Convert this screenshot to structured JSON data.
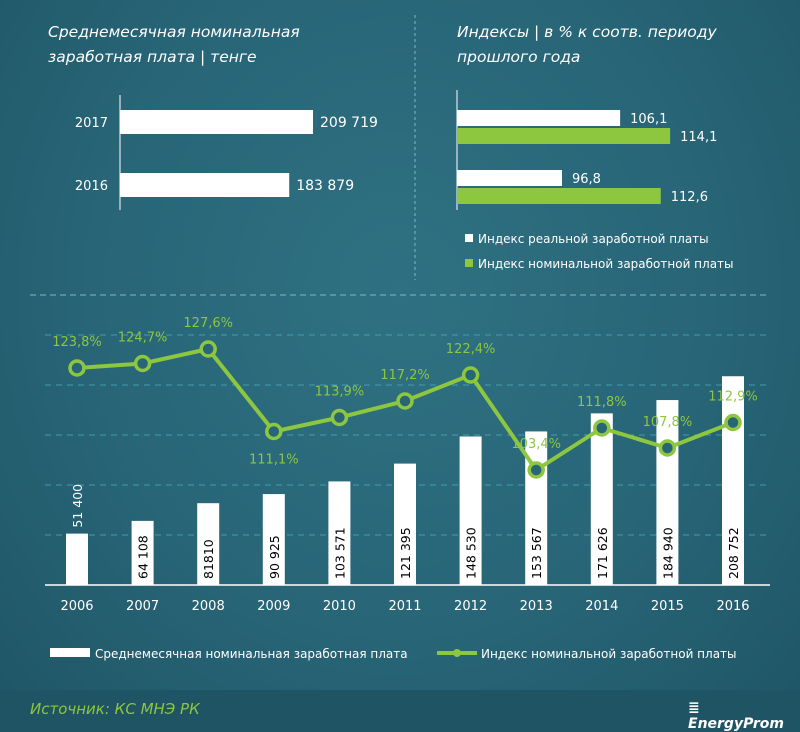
{
  "colors": {
    "bar": "#ffffff",
    "green": "#8dc63f",
    "grid": "#4fb3c8"
  },
  "top_left": {
    "title_line1": "Среднемесячная  номинальная",
    "title_line2": "заработная плата | тенге",
    "categories": [
      "2017",
      "2016"
    ],
    "values": [
      209719,
      183879
    ],
    "labels": [
      "209 719",
      "183 879"
    ]
  },
  "top_right": {
    "title_line1": "Индексы  | в % к соотв. периоду",
    "title_line2": "прошлого года",
    "xmin": 80,
    "groups": [
      {
        "real": 106.1,
        "nominal": 114.1,
        "real_label": "106,1",
        "nominal_label": "114,1"
      },
      {
        "real": 96.8,
        "nominal": 112.6,
        "real_label": "96,8",
        "nominal_label": "112,6"
      }
    ],
    "legend": [
      "Индекс реальной заработной платы",
      "Индекс номинальной заработной платы"
    ]
  },
  "chart_data": {
    "type": "bar+line",
    "categories": [
      "2006",
      "2007",
      "2008",
      "2009",
      "2010",
      "2011",
      "2012",
      "2013",
      "2014",
      "2015",
      "2016"
    ],
    "series": [
      {
        "name": "Среднемесячная номинальная заработная плата",
        "type": "bar",
        "values": [
          51400,
          64108,
          81810,
          90925,
          103571,
          121395,
          148530,
          153567,
          171626,
          184940,
          208752
        ],
        "labels": [
          "51 400",
          "64 108",
          "81810",
          "90 925",
          "103 571",
          "121 395",
          "148 530",
          "153 567",
          "171 626",
          "184 940",
          "208 752"
        ]
      },
      {
        "name": "Индекс номинальной заработной платы",
        "type": "line",
        "values": [
          123.8,
          124.7,
          127.6,
          111.1,
          113.9,
          117.2,
          122.4,
          103.4,
          111.8,
          107.8,
          112.9
        ],
        "labels": [
          "123,8%",
          "124,7%",
          "127,6%",
          "111,1%",
          "113,9%",
          "117,2%",
          "122,4%",
          "103,4%",
          "111,8%",
          "107,8%",
          "112,9%"
        ]
      }
    ],
    "bar_ylim": [
      0,
      250000
    ],
    "grid": true,
    "legend": "bottom"
  },
  "source": "Источник: КС МНЭ РК",
  "logo": "EnergyProm"
}
